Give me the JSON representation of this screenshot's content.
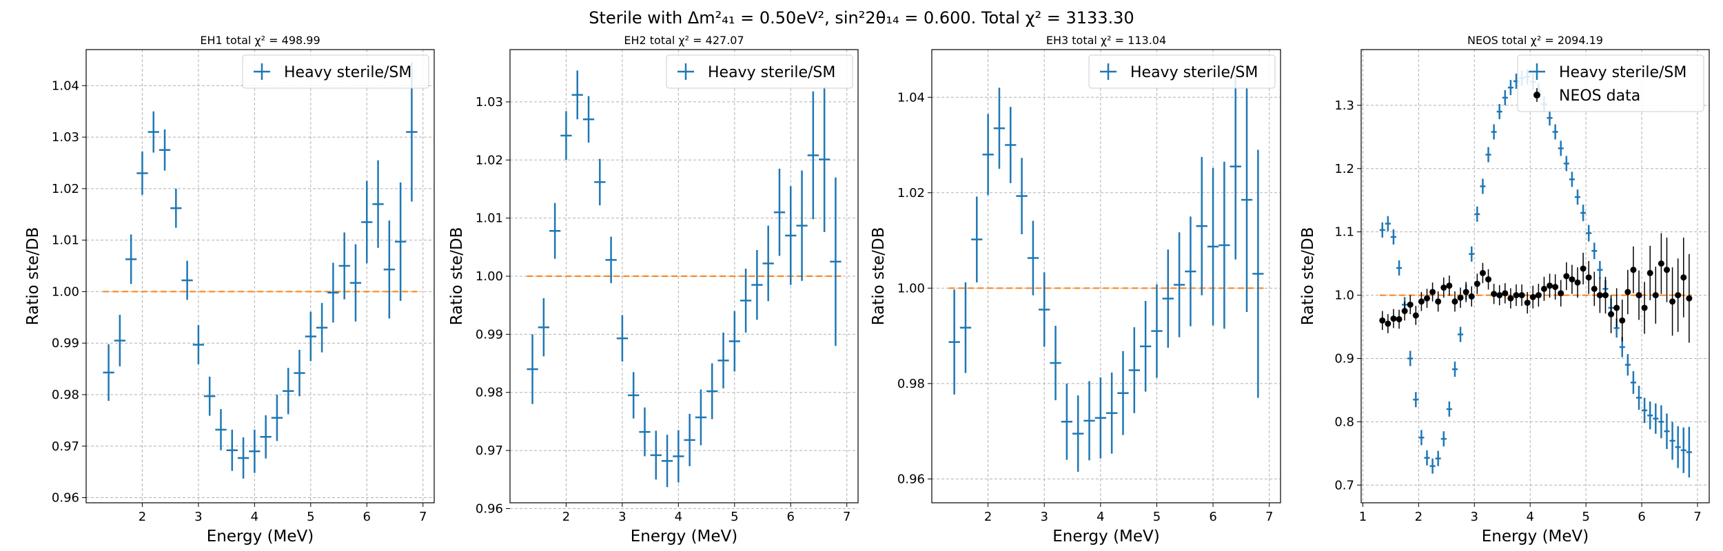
{
  "figure": {
    "suptitle": "Sterile with Δm²₄₁ = 0.50eV², sin²2θ₁₄ = 0.600. Total χ² = 3133.30"
  },
  "colors": {
    "model": "#1f77b4",
    "reference": "#ff7f0e",
    "data": "#000000",
    "grid": "#b0b0b0"
  },
  "chart_data": [
    {
      "type": "scatter",
      "title": "EH1 total χ² = 498.99",
      "xlabel": "Energy (MeV)",
      "ylabel": "Ratio ste/DB",
      "xlim": [
        1.0,
        7.2
      ],
      "ylim": [
        0.959,
        1.047
      ],
      "xticks": [
        2,
        3,
        4,
        5,
        6,
        7
      ],
      "yticks": [
        0.96,
        0.97,
        0.98,
        0.99,
        1.0,
        1.01,
        1.02,
        1.03,
        1.04
      ],
      "ytick_decimals": 2,
      "grid": true,
      "legend": "upper right",
      "reference_line": {
        "y": 1.0,
        "x": [
          1.3,
          6.9
        ]
      },
      "series": [
        {
          "name": "Heavy sterile/SM",
          "style": "errorbar",
          "x": [
            1.4,
            1.6,
            1.8,
            2.0,
            2.2,
            2.4,
            2.6,
            2.8,
            3.0,
            3.2,
            3.4,
            3.6,
            3.8,
            4.0,
            4.2,
            4.4,
            4.6,
            4.8,
            5.0,
            5.2,
            5.4,
            5.6,
            5.8,
            6.0,
            6.2,
            6.4,
            6.6,
            6.8
          ],
          "xerr": 0.1,
          "y": [
            0.9843,
            0.9905,
            1.0063,
            1.023,
            1.031,
            1.0275,
            1.0162,
            1.0022,
            0.9897,
            0.9797,
            0.9732,
            0.9692,
            0.9677,
            0.969,
            0.9718,
            0.9755,
            0.9807,
            0.9842,
            0.9913,
            0.993,
            0.9998,
            1.005,
            1.0017,
            1.0135,
            1.017,
            1.0043,
            1.0097,
            1.031
          ],
          "yerr": [
            0.0055,
            0.005,
            0.0048,
            0.0042,
            0.004,
            0.004,
            0.0038,
            0.0038,
            0.0038,
            0.0038,
            0.004,
            0.004,
            0.004,
            0.0042,
            0.0042,
            0.0045,
            0.0045,
            0.0045,
            0.0048,
            0.0048,
            0.0058,
            0.0065,
            0.0075,
            0.008,
            0.0085,
            0.0095,
            0.0115,
            0.0135
          ]
        }
      ]
    },
    {
      "type": "scatter",
      "title": "EH2 total χ² = 427.07",
      "xlabel": "Energy (MeV)",
      "ylabel": "Ratio ste/DB",
      "xlim": [
        1.0,
        7.2
      ],
      "ylim": [
        0.961,
        1.039
      ],
      "xticks": [
        2,
        3,
        4,
        5,
        6,
        7
      ],
      "yticks": [
        0.96,
        0.97,
        0.98,
        0.99,
        1.0,
        1.01,
        1.02,
        1.03
      ],
      "ytick_decimals": 2,
      "grid": true,
      "legend": "upper right",
      "reference_line": {
        "y": 1.0,
        "x": [
          1.3,
          6.9
        ]
      },
      "series": [
        {
          "name": "Heavy sterile/SM",
          "style": "errorbar",
          "x": [
            1.4,
            1.6,
            1.8,
            2.0,
            2.2,
            2.4,
            2.6,
            2.8,
            3.0,
            3.2,
            3.4,
            3.6,
            3.8,
            4.0,
            4.2,
            4.4,
            4.6,
            4.8,
            5.0,
            5.2,
            5.4,
            5.6,
            5.8,
            6.0,
            6.2,
            6.4,
            6.6,
            6.8
          ],
          "xerr": 0.1,
          "y": [
            0.984,
            0.9912,
            1.0078,
            1.0242,
            1.0312,
            1.027,
            1.0162,
            1.0028,
            0.9893,
            0.9795,
            0.9732,
            0.9692,
            0.9682,
            0.969,
            0.9718,
            0.9757,
            0.9802,
            0.9855,
            0.9888,
            0.9958,
            0.9985,
            1.0022,
            1.011,
            1.007,
            1.0087,
            1.0208,
            1.0201,
            1.0025
          ],
          "yerr": [
            0.006,
            0.005,
            0.0048,
            0.0042,
            0.0042,
            0.004,
            0.004,
            0.004,
            0.004,
            0.004,
            0.0042,
            0.0042,
            0.0045,
            0.0045,
            0.0045,
            0.0048,
            0.0048,
            0.0048,
            0.0052,
            0.0055,
            0.006,
            0.0065,
            0.0075,
            0.0085,
            0.0095,
            0.011,
            0.0125,
            0.0145
          ]
        }
      ]
    },
    {
      "type": "scatter",
      "title": "EH3 total χ² = 113.04",
      "xlabel": "Energy (MeV)",
      "ylabel": "Ratio ste/DB",
      "xlim": [
        1.0,
        7.2
      ],
      "ylim": [
        0.955,
        1.05
      ],
      "xticks": [
        2,
        3,
        4,
        5,
        6,
        7
      ],
      "yticks": [
        0.96,
        0.98,
        1.0,
        1.02,
        1.04
      ],
      "ytick_decimals": 2,
      "grid": true,
      "legend": "upper right",
      "reference_line": {
        "y": 1.0,
        "x": [
          1.3,
          6.9
        ]
      },
      "series": [
        {
          "name": "Heavy sterile/SM",
          "style": "errorbar",
          "x": [
            1.4,
            1.6,
            1.8,
            2.0,
            2.2,
            2.4,
            2.6,
            2.8,
            3.0,
            3.2,
            3.4,
            3.6,
            3.8,
            4.0,
            4.2,
            4.4,
            4.6,
            4.8,
            5.0,
            5.2,
            5.4,
            5.6,
            5.8,
            6.0,
            6.2,
            6.4,
            6.6,
            6.8
          ],
          "xerr": 0.1,
          "y": [
            0.9887,
            0.9917,
            1.0102,
            1.028,
            1.0335,
            1.03,
            1.0193,
            1.0063,
            0.9955,
            0.9843,
            0.972,
            0.9695,
            0.9722,
            0.9728,
            0.9738,
            0.978,
            0.9828,
            0.9878,
            0.991,
            0.9978,
            1.0007,
            1.0035,
            1.013,
            1.0087,
            1.009,
            1.0255,
            1.0185,
            1.003
          ],
          "yerr": [
            0.011,
            0.0095,
            0.009,
            0.0085,
            0.0085,
            0.008,
            0.008,
            0.0078,
            0.0078,
            0.0078,
            0.008,
            0.008,
            0.0083,
            0.0085,
            0.0085,
            0.0088,
            0.009,
            0.0095,
            0.0098,
            0.0103,
            0.011,
            0.0115,
            0.0145,
            0.0165,
            0.0175,
            0.0195,
            0.0235,
            0.026
          ]
        }
      ]
    },
    {
      "type": "scatter",
      "title": "NEOS total χ² = 2094.19",
      "xlabel": "Energy (MeV)",
      "ylabel": "Ratio ste/DB",
      "xlim": [
        0.97,
        7.21
      ],
      "ylim": [
        0.672,
        1.388
      ],
      "xticks": [
        1,
        2,
        3,
        4,
        5,
        6,
        7
      ],
      "yticks": [
        0.7,
        0.8,
        0.9,
        1.0,
        1.1,
        1.2,
        1.3
      ],
      "ytick_decimals": 1,
      "grid": true,
      "legend": "upper right",
      "reference_line": {
        "y": 1.0,
        "x": [
          1.3,
          6.9
        ]
      },
      "series": [
        {
          "name": "Heavy sterile/SM",
          "style": "errorbar",
          "x": [
            1.35,
            1.45,
            1.55,
            1.65,
            1.75,
            1.85,
            1.95,
            2.05,
            2.15,
            2.25,
            2.35,
            2.45,
            2.55,
            2.65,
            2.75,
            2.85,
            2.95,
            3.05,
            3.15,
            3.25,
            3.35,
            3.45,
            3.55,
            3.65,
            3.75,
            3.85,
            3.95,
            4.05,
            4.15,
            4.25,
            4.35,
            4.45,
            4.55,
            4.65,
            4.75,
            4.85,
            4.95,
            5.05,
            5.15,
            5.25,
            5.35,
            5.45,
            5.55,
            5.65,
            5.75,
            5.85,
            5.95,
            6.05,
            6.15,
            6.25,
            6.35,
            6.45,
            6.55,
            6.65,
            6.75,
            6.85
          ],
          "xerr": 0.05,
          "y": [
            1.103,
            1.113,
            1.092,
            1.043,
            0.985,
            0.9,
            0.835,
            0.775,
            0.743,
            0.73,
            0.742,
            0.773,
            0.82,
            0.883,
            0.938,
            1.005,
            1.065,
            1.128,
            1.172,
            1.222,
            1.258,
            1.29,
            1.312,
            1.328,
            1.338,
            1.343,
            1.345,
            1.337,
            1.323,
            1.302,
            1.28,
            1.258,
            1.232,
            1.208,
            1.183,
            1.155,
            1.13,
            1.098,
            1.07,
            1.04,
            1.01,
            0.98,
            0.948,
            0.918,
            0.89,
            0.862,
            0.838,
            0.818,
            0.81,
            0.805,
            0.8,
            0.785,
            0.77,
            0.76,
            0.755,
            0.752
          ],
          "yerr": [
            0.012,
            0.012,
            0.012,
            0.012,
            0.012,
            0.012,
            0.012,
            0.012,
            0.012,
            0.012,
            0.012,
            0.012,
            0.012,
            0.012,
            0.012,
            0.012,
            0.012,
            0.012,
            0.012,
            0.012,
            0.012,
            0.012,
            0.012,
            0.012,
            0.012,
            0.012,
            0.012,
            0.012,
            0.012,
            0.012,
            0.012,
            0.012,
            0.012,
            0.012,
            0.012,
            0.012,
            0.013,
            0.013,
            0.013,
            0.014,
            0.014,
            0.015,
            0.015,
            0.016,
            0.017,
            0.018,
            0.019,
            0.02,
            0.022,
            0.024,
            0.026,
            0.028,
            0.03,
            0.033,
            0.036,
            0.04
          ]
        },
        {
          "name": "NEOS data",
          "style": "points",
          "x": [
            1.35,
            1.45,
            1.55,
            1.65,
            1.75,
            1.85,
            1.95,
            2.05,
            2.15,
            2.25,
            2.35,
            2.45,
            2.55,
            2.65,
            2.75,
            2.85,
            2.95,
            3.05,
            3.15,
            3.25,
            3.35,
            3.45,
            3.55,
            3.65,
            3.75,
            3.85,
            3.95,
            4.05,
            4.15,
            4.25,
            4.35,
            4.45,
            4.55,
            4.65,
            4.75,
            4.85,
            4.95,
            5.05,
            5.15,
            5.25,
            5.35,
            5.45,
            5.55,
            5.65,
            5.75,
            5.85,
            5.95,
            6.05,
            6.15,
            6.25,
            6.35,
            6.45,
            6.55,
            6.65,
            6.75,
            6.85
          ],
          "y": [
            0.96,
            0.955,
            0.963,
            0.962,
            0.975,
            0.985,
            0.968,
            0.99,
            0.995,
            1.005,
            0.99,
            1.012,
            1.015,
            0.99,
            0.996,
            1.005,
            0.998,
            1.018,
            1.035,
            1.025,
            1.002,
            1.0,
            1.003,
            0.995,
            1.0,
            1.0,
            0.988,
            0.997,
            1.0,
            1.01,
            1.015,
            1.013,
            1.003,
            1.03,
            1.025,
            1.02,
            1.042,
            1.028,
            1.01,
            1.0,
            1.0,
            0.97,
            0.98,
            0.96,
            1.005,
            1.04,
            1.0,
            0.98,
            1.035,
            1.0,
            1.05,
            1.04,
            0.99,
            1.0,
            1.028,
            0.995
          ],
          "yerr": [
            0.015,
            0.015,
            0.015,
            0.015,
            0.015,
            0.015,
            0.015,
            0.015,
            0.015,
            0.015,
            0.016,
            0.016,
            0.016,
            0.016,
            0.016,
            0.016,
            0.016,
            0.016,
            0.016,
            0.016,
            0.016,
            0.016,
            0.016,
            0.016,
            0.017,
            0.017,
            0.017,
            0.018,
            0.018,
            0.019,
            0.019,
            0.02,
            0.021,
            0.022,
            0.023,
            0.024,
            0.025,
            0.026,
            0.027,
            0.028,
            0.029,
            0.03,
            0.031,
            0.033,
            0.035,
            0.037,
            0.039,
            0.041,
            0.043,
            0.045,
            0.048,
            0.051,
            0.054,
            0.058,
            0.063,
            0.07
          ]
        }
      ]
    }
  ]
}
